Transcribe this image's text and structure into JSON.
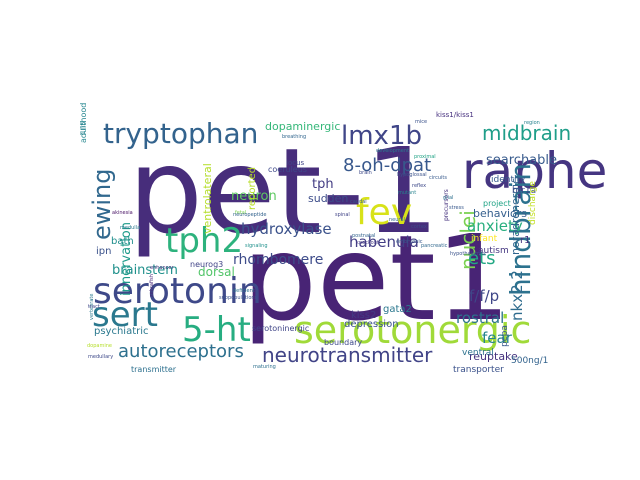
{
  "words": [
    {
      "text": "pet-1",
      "color": "#472d7b"
    },
    {
      "text": "pet1",
      "color": "#482475"
    },
    {
      "text": "raphe",
      "color": "#453581"
    },
    {
      "text": "serotonergic",
      "color": "#a0da39"
    },
    {
      "text": "serotonin",
      "color": "#3e4989"
    },
    {
      "text": "tph2",
      "color": "#2db27d"
    },
    {
      "text": "5-ht",
      "color": "#27ad81"
    },
    {
      "text": "fev",
      "color": "#d8e219"
    },
    {
      "text": "sert",
      "color": "#2a788e"
    },
    {
      "text": "tryptophan",
      "color": "#33638d"
    },
    {
      "text": "hindbrain",
      "color": "#2c728e"
    },
    {
      "text": "lmx1b",
      "color": "#404688"
    },
    {
      "text": "neurotransmitter",
      "color": "#414487"
    },
    {
      "text": "ewing",
      "color": "#31688e"
    },
    {
      "text": "midbrain",
      "color": "#1f9e89"
    },
    {
      "text": "autoreceptors",
      "color": "#2d708e"
    },
    {
      "text": "8-oh-dpat",
      "color": "#38588c"
    },
    {
      "text": "nuclei",
      "color": "#7ad151"
    },
    {
      "text": "ets",
      "color": "#22a884"
    },
    {
      "text": "hydroxylase",
      "color": "#3b528b"
    },
    {
      "text": "habenula",
      "color": "#433e85"
    },
    {
      "text": "anxiety",
      "color": "#29af7f"
    },
    {
      "text": "rhombomere",
      "color": "#3e4c8a"
    },
    {
      "text": "brainstem",
      "color": "#21918c"
    },
    {
      "text": "f/f/p",
      "color": "#3f4788"
    },
    {
      "text": "rostral",
      "color": "#2c738e"
    },
    {
      "text": "fear",
      "color": "#25858e"
    },
    {
      "text": "nkx2.2",
      "color": "#2f6c8e"
    },
    {
      "text": "searchable",
      "color": "#375a8c"
    },
    {
      "text": "neuron",
      "color": "#5ec962"
    },
    {
      "text": "innervation",
      "color": "#1e9b8a"
    },
    {
      "text": "tph",
      "color": "#433d84"
    },
    {
      "text": "sudden",
      "color": "#3d4d8a"
    },
    {
      "text": "behaviors",
      "color": "#355f8d"
    },
    {
      "text": "dopaminergic",
      "color": "#35b779"
    },
    {
      "text": "ventrolateral",
      "color": "#b5de2b"
    },
    {
      "text": "reported",
      "color": "#b8de29"
    },
    {
      "text": "dorsal",
      "color": "#52c569"
    },
    {
      "text": "depression",
      "color": "#3b528b"
    },
    {
      "text": "reuptake",
      "color": "#46327e"
    },
    {
      "text": "noradrenergic",
      "color": "#31668e"
    },
    {
      "text": "psychiatric",
      "color": "#2a788e"
    },
    {
      "text": "bath",
      "color": "#218f8d"
    },
    {
      "text": "ipn",
      "color": "#3b528b"
    },
    {
      "text": "neurog3",
      "color": "#414487"
    },
    {
      "text": "boundary",
      "color": "#3e4989"
    },
    {
      "text": "kiss2",
      "color": "#443983"
    },
    {
      "text": "gata2",
      "color": "#2a778e"
    },
    {
      "text": "r1",
      "color": "#46337f"
    },
    {
      "text": "infant",
      "color": "#fde725"
    },
    {
      "text": "autism",
      "color": "#453781"
    },
    {
      "text": "ventral",
      "color": "#2c718e"
    },
    {
      "text": "transporter",
      "color": "#3b528b"
    },
    {
      "text": "500ng/1",
      "color": "#33638d"
    },
    {
      "text": "pcpa",
      "color": "#38588c"
    },
    {
      "text": "identity",
      "color": "#375a8c"
    },
    {
      "text": "htr1a",
      "color": "#3e4a89"
    },
    {
      "text": "project",
      "color": "#20a386"
    },
    {
      "text": "discharge",
      "color": "#c2df23"
    },
    {
      "text": "coeruleus",
      "color": "#3e4989"
    },
    {
      "text": "kiss1/kiss1",
      "color": "#46307e"
    },
    {
      "text": "serotoninergic",
      "color": "#404688"
    },
    {
      "text": "transmitter",
      "color": "#2d708e"
    },
    {
      "text": "adulthood",
      "color": "#24868e"
    },
    {
      "text": "cns",
      "color": "#26828e"
    },
    {
      "text": "locus",
      "color": "#414487"
    },
    {
      "text": "breathing",
      "color": "#31668e"
    },
    {
      "text": "akinesia",
      "color": "#471164"
    },
    {
      "text": "medulla",
      "color": "#2a788e"
    },
    {
      "text": "hypoglossal",
      "color": "#3b528b"
    },
    {
      "text": "proximal",
      "color": "#20a386"
    },
    {
      "text": "caudal",
      "color": "#38588c"
    },
    {
      "text": "pancreatic",
      "color": "#31688e"
    },
    {
      "text": "precursors",
      "color": "#46327e"
    },
    {
      "text": "fetal",
      "color": "#7ad151"
    },
    {
      "text": "medullary",
      "color": "#3e4989"
    },
    {
      "text": "maturing",
      "color": "#2d708e"
    },
    {
      "text": "dopamine",
      "color": "#b5de2b"
    },
    {
      "text": "subpopulations",
      "color": "#3b528b"
    },
    {
      "text": "neuropeptide",
      "color": "#33638d"
    },
    {
      "text": "vertebrate",
      "color": "#2a788e"
    },
    {
      "text": "zebrafish",
      "color": "#482878"
    },
    {
      "text": "reflex",
      "color": "#3e4989"
    },
    {
      "text": "mutant",
      "color": "#26828e"
    },
    {
      "text": "spinal",
      "color": "#414487"
    },
    {
      "text": "neural",
      "color": "#31688e"
    },
    {
      "text": "embryonic",
      "color": "#38588c"
    },
    {
      "text": "hypothalamus",
      "color": "#3b528b"
    },
    {
      "text": "signaling",
      "color": "#21918c"
    },
    {
      "text": "knockout",
      "color": "#443983"
    },
    {
      "text": "deficient",
      "color": "#2c728e"
    },
    {
      "text": "cortex",
      "color": "#3e4a89"
    },
    {
      "text": "circuits",
      "color": "#375a8c"
    },
    {
      "text": "development",
      "color": "#2a788e"
    },
    {
      "text": "enhancer",
      "color": "#46327e"
    },
    {
      "text": "mice",
      "color": "#3b528b"
    },
    {
      "text": "postnatal",
      "color": "#33638d"
    },
    {
      "text": "region",
      "color": "#26828e"
    },
    {
      "text": "tract",
      "color": "#414487"
    },
    {
      "text": "brain",
      "color": "#3e4989"
    },
    {
      "text": "glial",
      "color": "#2d708e"
    },
    {
      "text": "stress",
      "color": "#38588c"
    }
  ]
}
